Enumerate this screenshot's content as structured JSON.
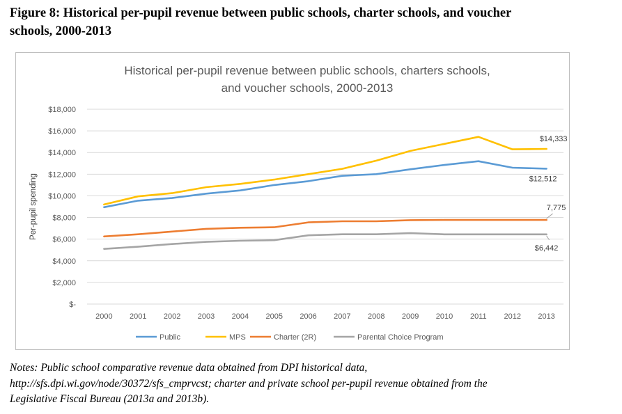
{
  "figure_title_line1": "Figure 8: Historical per-pupil revenue between public schools, charter schools, and voucher",
  "figure_title_line2": "schools, 2000-2013",
  "notes_line1": "Notes: Public school comparative revenue data obtained from DPI historical data,",
  "notes_line2": "http://sfs.dpi.wi.gov/node/30372/sfs_cmprvcst; charter and private school per-pupil revenue obtained from the",
  "notes_line3": "Legislative Fiscal Bureau (2013a and 2013b).",
  "chart_data": {
    "type": "line",
    "title_line1": "Historical per-pupil revenue between public schools, charters schools,",
    "title_line2": "and voucher schools, 2000-2013",
    "xlabel": "",
    "ylabel": "Per-pupil spending",
    "x": [
      "2000",
      "2001",
      "2002",
      "2003",
      "2004",
      "2005",
      "2006",
      "2007",
      "2008",
      "2009",
      "2010",
      "2011",
      "2012",
      "2013"
    ],
    "ylim": [
      0,
      18000
    ],
    "yticks": [
      0,
      2000,
      4000,
      6000,
      8000,
      10000,
      12000,
      14000,
      16000,
      18000
    ],
    "ytick_labels": [
      "$-",
      "$2,000",
      "$4,000",
      "$6,000",
      "$8,000",
      "$10,000",
      "$12,000",
      "$14,000",
      "$16,000",
      "$18,000"
    ],
    "grid": true,
    "legend_position": "bottom",
    "series": [
      {
        "name": "Public",
        "color": "#5B9BD5",
        "values": [
          8950,
          9550,
          9800,
          10200,
          10500,
          11000,
          11350,
          11850,
          12000,
          12450,
          12850,
          13200,
          12600,
          12512
        ]
      },
      {
        "name": "MPS",
        "color": "#FFC000",
        "values": [
          9200,
          9950,
          10250,
          10800,
          11100,
          11500,
          12000,
          12500,
          13250,
          14150,
          14800,
          15450,
          14300,
          14333
        ]
      },
      {
        "name": "Charter (2R)",
        "color": "#ED7D31",
        "values": [
          6250,
          6450,
          6700,
          6950,
          7050,
          7100,
          7550,
          7650,
          7650,
          7750,
          7775,
          7775,
          7775,
          7775
        ]
      },
      {
        "name": "Parental Choice Program",
        "color": "#A5A5A5",
        "values": [
          5100,
          5300,
          5550,
          5750,
          5850,
          5900,
          6350,
          6450,
          6450,
          6550,
          6442,
          6442,
          6442,
          6442
        ]
      }
    ],
    "annotations": [
      {
        "series": "MPS",
        "text": "$14,333"
      },
      {
        "series": "Public",
        "text": "$12,512"
      },
      {
        "series": "Charter (2R)",
        "text": "7,775"
      },
      {
        "series": "Parental Choice Program",
        "text": "$6,442"
      }
    ]
  }
}
